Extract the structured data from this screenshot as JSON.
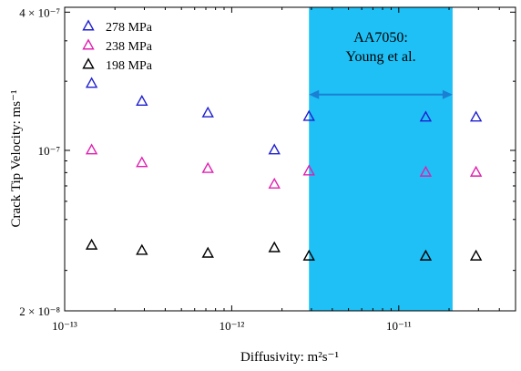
{
  "chart_data": {
    "type": "scatter",
    "xlabel": "Diffusivity: m²s⁻¹",
    "ylabel": "Crack Tip Velocity: ms⁻¹",
    "xscale": "log",
    "yscale": "log",
    "xlim": [
      1e-13,
      5e-11
    ],
    "ylim": [
      2e-08,
      4.2e-07
    ],
    "x_ticks": [
      {
        "value": 1e-13,
        "label": "10⁻¹³"
      },
      {
        "value": 1e-12,
        "label": "10⁻¹²"
      },
      {
        "value": 1e-11,
        "label": "10⁻¹¹"
      }
    ],
    "y_ticks": [
      {
        "value": 2e-08,
        "label": "2 × 10⁻⁸"
      },
      {
        "value": 1e-07,
        "label": "10⁻⁷"
      },
      {
        "value": 4e-07,
        "label": "4 × 10⁻⁷"
      }
    ],
    "grid": false,
    "legend": {
      "position": "top-left",
      "marker": "hollow-triangle"
    },
    "series": [
      {
        "name": "278 MPa",
        "color": "#1f1fd0",
        "x": [
          1.45e-13,
          2.9e-13,
          7.2e-13,
          1.8e-12,
          2.9e-12,
          1.45e-11,
          2.9e-11
        ],
        "y": [
          1.95e-07,
          1.63e-07,
          1.45e-07,
          1e-07,
          1.4e-07,
          1.39e-07,
          1.39e-07
        ]
      },
      {
        "name": "238 MPa",
        "color": "#e020b0",
        "x": [
          1.45e-13,
          2.9e-13,
          7.2e-13,
          1.8e-12,
          2.9e-12,
          1.45e-11,
          2.9e-11
        ],
        "y": [
          1e-07,
          8.8e-08,
          8.3e-08,
          7.1e-08,
          8.1e-08,
          8e-08,
          8e-08
        ]
      },
      {
        "name": "198 MPa",
        "color": "#000000",
        "x": [
          1.45e-13,
          2.9e-13,
          7.2e-13,
          1.8e-12,
          2.9e-12,
          1.45e-11,
          2.9e-11
        ],
        "y": [
          3.85e-08,
          3.65e-08,
          3.55e-08,
          3.75e-08,
          3.45e-08,
          3.45e-08,
          3.45e-08
        ]
      }
    ],
    "annotation": {
      "label_lines": [
        "AA7050:",
        "Young et al."
      ],
      "x_range": [
        2.9e-12,
        2.1e-11
      ],
      "fill_color": "#1ec0f5",
      "arrow_color": "#1b7fd4",
      "arrow_y": 1.75e-07
    }
  }
}
